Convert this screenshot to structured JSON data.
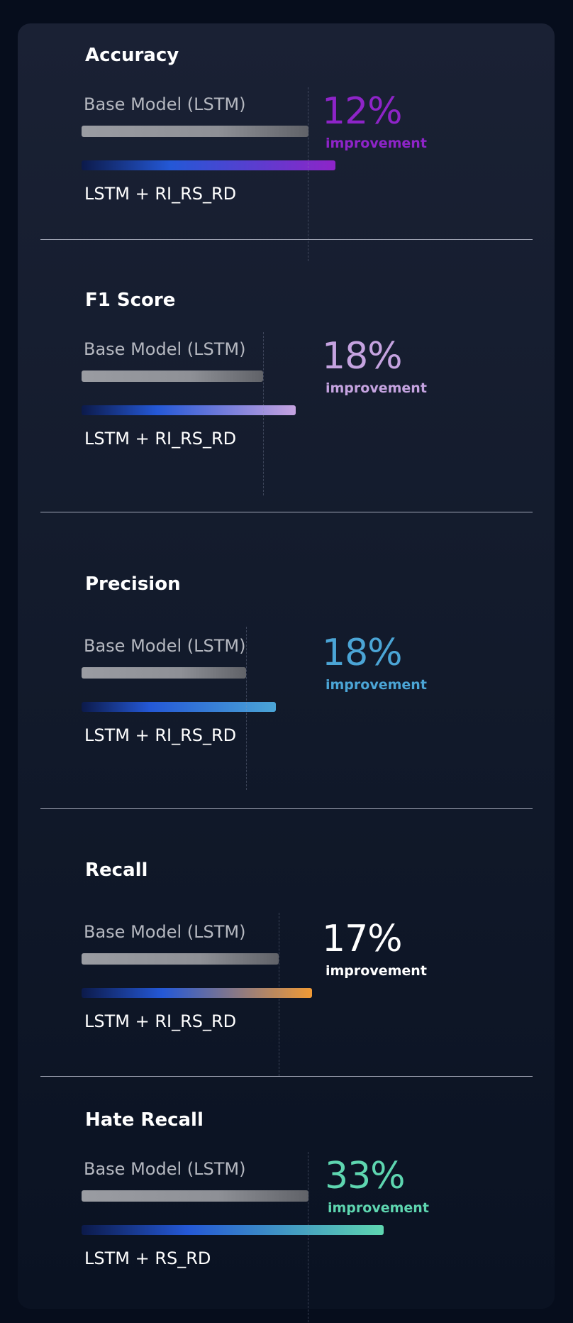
{
  "chart_data": {
    "type": "bar",
    "unit": "%",
    "panels": [
      {
        "metric": "Accuracy",
        "base_label": "Base Model (LSTM)",
        "model_label": "LSTM + RI_RS_RD",
        "improvement": "12%",
        "improvement_label": "improvement",
        "color": "#8e24c8",
        "base_value": 1.0,
        "model_value": 1.12
      },
      {
        "metric": "F1 Score",
        "base_label": "Base Model (LSTM)",
        "model_label": "LSTM + RI_RS_RD",
        "improvement": "18%",
        "improvement_label": "improvement",
        "color": "#c5a3e0",
        "base_value": 1.0,
        "model_value": 1.18
      },
      {
        "metric": "Precision",
        "base_label": "Base Model (LSTM)",
        "model_label": "LSTM + RI_RS_RD",
        "improvement": "18%",
        "improvement_label": "improvement",
        "color": "#4ba5d6",
        "base_value": 1.0,
        "model_value": 1.18
      },
      {
        "metric": "Recall",
        "base_label": "Base Model (LSTM)",
        "model_label": "LSTM + RI_RS_RD",
        "improvement": "17%",
        "improvement_label": "improvement",
        "color": "#ffffff",
        "bar_color": "#f09a35",
        "base_value": 1.0,
        "model_value": 1.17
      },
      {
        "metric": "Hate Recall",
        "base_label": "Base Model (LSTM)",
        "model_label": "LSTM + RS_RD",
        "improvement": "33%",
        "improvement_label": "improvement",
        "color": "#5ed6b0",
        "base_value": 1.0,
        "model_value": 1.33
      }
    ]
  }
}
